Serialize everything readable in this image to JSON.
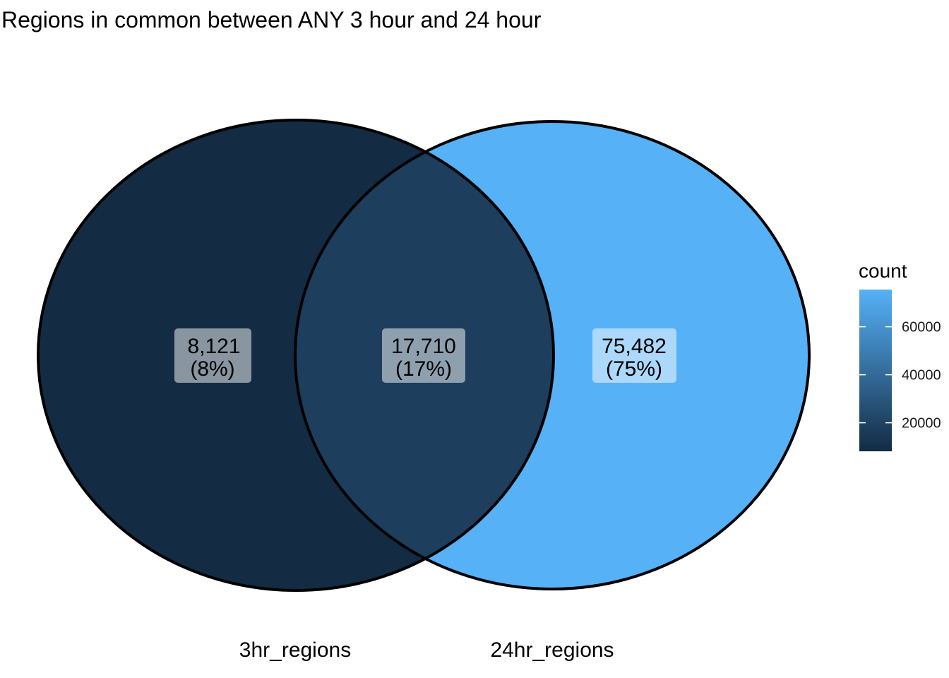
{
  "chart_data": {
    "type": "venn",
    "title": "Regions in common between ANY 3 hour and 24 hour",
    "sets": [
      "3hr_regions",
      "24hr_regions"
    ],
    "regions": [
      {
        "sets": [
          "3hr_regions"
        ],
        "count": 8121,
        "count_label": "8,121",
        "percent_label": "(8%)"
      },
      {
        "sets": [
          "3hr_regions",
          "24hr_regions"
        ],
        "count": 17710,
        "count_label": "17,710",
        "percent_label": "(17%)"
      },
      {
        "sets": [
          "24hr_regions"
        ],
        "count": 75482,
        "count_label": "75,482",
        "percent_label": "(75%)"
      }
    ],
    "legend": {
      "title": "count",
      "position": "right",
      "ticks": [
        20000,
        40000,
        60000
      ],
      "tick_labels": [
        "20000",
        "40000",
        "60000"
      ],
      "range": [
        8121,
        75482
      ],
      "color_low": "#132B43",
      "color_high": "#56B1F7"
    }
  }
}
